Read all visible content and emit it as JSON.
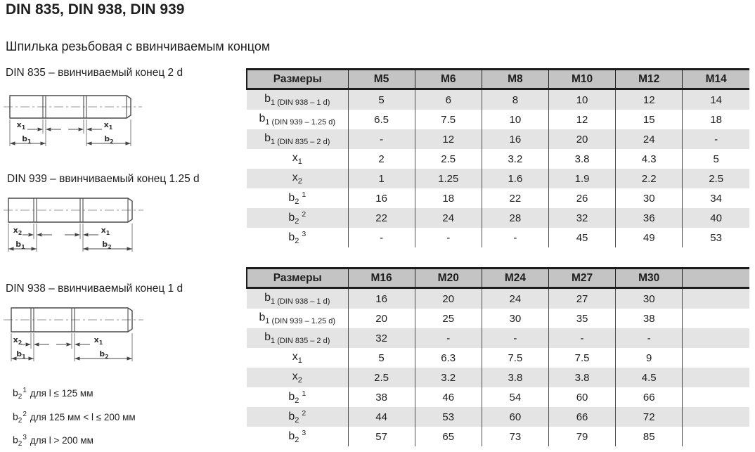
{
  "page": {
    "title": "DIN 835, DIN 938, DIN 939",
    "subtitle": "Шпилька резьбовая с ввинчиваемым концом"
  },
  "diagrams": [
    {
      "label": "DIN 835 – ввинчиваемый конец 2 d",
      "dims": {
        "xl": "x",
        "xls": "1",
        "xr": "x",
        "xrs": "1",
        "bl": "b",
        "bls": "1",
        "br": "b",
        "brs": "2"
      }
    },
    {
      "label": "DIN 939 – ввинчиваемый конец 1.25 d",
      "dims": {
        "xl": "x",
        "xls": "2",
        "xr": "x",
        "xrs": "1",
        "bl": "b",
        "bls": "1",
        "br": "b",
        "brs": "2"
      }
    },
    {
      "label": "DIN 938 – ввинчиваемый конец 1 d",
      "dims": {
        "xl": "x",
        "xls": "2",
        "xr": "x",
        "xrs": "1",
        "bl": "b",
        "bls": "1",
        "br": "b",
        "brs": "2"
      }
    }
  ],
  "tables": [
    {
      "columns": [
        "Размеры",
        "M5",
        "M6",
        "M8",
        "M10",
        "M12",
        "M14"
      ],
      "rows": [
        {
          "label": {
            "base": "b",
            "sub": "1 (DIN 938 – 1 d)",
            "sup": ""
          },
          "cells": [
            "5",
            "6",
            "8",
            "10",
            "12",
            "14"
          ]
        },
        {
          "label": {
            "base": "b",
            "sub": "1 (DIN 939 – 1.25 d)",
            "sup": ""
          },
          "cells": [
            "6.5",
            "7.5",
            "10",
            "12",
            "15",
            "18"
          ]
        },
        {
          "label": {
            "base": "b",
            "sub": "1 (DIN 835 – 2 d)",
            "sup": ""
          },
          "cells": [
            "-",
            "12",
            "16",
            "20",
            "24",
            "-"
          ]
        },
        {
          "label": {
            "base": "x",
            "sub": "1",
            "sup": ""
          },
          "cells": [
            "2",
            "2.5",
            "3.2",
            "3.8",
            "4.3",
            "5"
          ]
        },
        {
          "label": {
            "base": "x",
            "sub": "2",
            "sup": ""
          },
          "cells": [
            "1",
            "1.25",
            "1.6",
            "1.9",
            "2.2",
            "2.5"
          ]
        },
        {
          "label": {
            "base": "b",
            "sub": "2",
            "sup": "1"
          },
          "cells": [
            "16",
            "18",
            "22",
            "26",
            "30",
            "34"
          ]
        },
        {
          "label": {
            "base": "b",
            "sub": "2",
            "sup": "2"
          },
          "cells": [
            "22",
            "24",
            "28",
            "32",
            "36",
            "40"
          ]
        },
        {
          "label": {
            "base": "b",
            "sub": "2",
            "sup": "3"
          },
          "cells": [
            "-",
            "-",
            "-",
            "45",
            "49",
            "53"
          ]
        }
      ]
    },
    {
      "columns": [
        "Размеры",
        "M16",
        "M20",
        "M24",
        "M27",
        "M30",
        ""
      ],
      "rows": [
        {
          "label": {
            "base": "b",
            "sub": "1 (DIN 938 – 1 d)",
            "sup": ""
          },
          "cells": [
            "16",
            "20",
            "24",
            "27",
            "30",
            ""
          ]
        },
        {
          "label": {
            "base": "b",
            "sub": "1 (DIN 939 – 1.25 d)",
            "sup": ""
          },
          "cells": [
            "20",
            "25",
            "30",
            "35",
            "38",
            ""
          ]
        },
        {
          "label": {
            "base": "b",
            "sub": "1 (DIN 835 – 2 d)",
            "sup": ""
          },
          "cells": [
            "32",
            "-",
            "-",
            "-",
            "-",
            ""
          ]
        },
        {
          "label": {
            "base": "x",
            "sub": "1",
            "sup": ""
          },
          "cells": [
            "5",
            "6.3",
            "7.5",
            "7.5",
            "9",
            ""
          ]
        },
        {
          "label": {
            "base": "x",
            "sub": "2",
            "sup": ""
          },
          "cells": [
            "2.5",
            "3.2",
            "3.8",
            "3.8",
            "4.5",
            ""
          ]
        },
        {
          "label": {
            "base": "b",
            "sub": "2",
            "sup": "1"
          },
          "cells": [
            "38",
            "46",
            "54",
            "60",
            "66",
            ""
          ]
        },
        {
          "label": {
            "base": "b",
            "sub": "2",
            "sup": "2"
          },
          "cells": [
            "44",
            "53",
            "60",
            "66",
            "72",
            ""
          ]
        },
        {
          "label": {
            "base": "b",
            "sub": "2",
            "sup": "3"
          },
          "cells": [
            "57",
            "65",
            "73",
            "79",
            "85",
            ""
          ]
        }
      ]
    }
  ],
  "footnotes": [
    {
      "base": "b",
      "sub": "2",
      "sup": "1",
      "text": "для l ≤ 125 мм"
    },
    {
      "base": "b",
      "sub": "2",
      "sup": "2",
      "text": "для 125 мм < l ≤ 200 мм"
    },
    {
      "base": "b",
      "sub": "2",
      "sup": "3",
      "text": "для l > 200 мм"
    }
  ],
  "colors": {
    "header_bg": "#c4c4c4",
    "band_bg": "#e4e4e4",
    "border": "#1c1c1c",
    "grid_line": "#4f4f4f",
    "text": "#1f1f1f"
  }
}
